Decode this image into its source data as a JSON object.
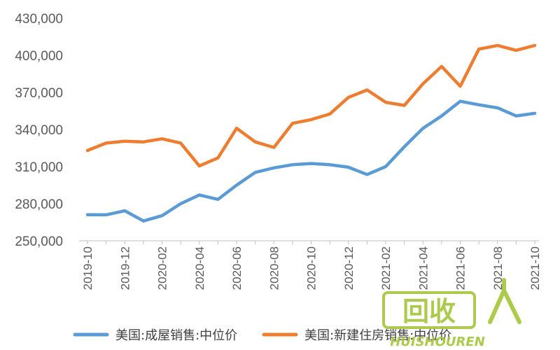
{
  "chart_data": {
    "type": "line",
    "title": "",
    "xlabel": "",
    "ylabel": "",
    "ylim": [
      250000,
      430000
    ],
    "y_ticks": [
      "250,000",
      "280,000",
      "310,000",
      "340,000",
      "370,000",
      "400,000",
      "430,000"
    ],
    "x_tick_labels": [
      "2019-10",
      "2019-12",
      "2020-02",
      "2020-04",
      "2020-06",
      "2020-08",
      "2020-10",
      "2020-12",
      "2021-02",
      "2021-04",
      "2021-06",
      "2021-08",
      "2021-10"
    ],
    "x": [
      "2019-10",
      "2019-11",
      "2019-12",
      "2020-01",
      "2020-02",
      "2020-03",
      "2020-04",
      "2020-05",
      "2020-06",
      "2020-07",
      "2020-08",
      "2020-09",
      "2020-10",
      "2020-11",
      "2020-12",
      "2021-01",
      "2021-02",
      "2021-03",
      "2021-04",
      "2021-05",
      "2021-06",
      "2021-07",
      "2021-08",
      "2021-09",
      "2021-10"
    ],
    "grid": false,
    "legend_position": "bottom",
    "series": [
      {
        "name": "美国:成屋销售:中位价",
        "color": "#5b9bd5",
        "values": [
          271100,
          271000,
          274300,
          266000,
          270300,
          280000,
          287000,
          283500,
          295000,
          305300,
          309000,
          311500,
          312500,
          311500,
          309500,
          303600,
          310000,
          326000,
          341000,
          351000,
          362800,
          360000,
          357500,
          351000,
          353100
        ]
      },
      {
        "name": "美国:新建住房销售:中位价",
        "color": "#ed7d31",
        "values": [
          323000,
          329000,
          330500,
          330000,
          332500,
          329000,
          310500,
          317000,
          341000,
          330000,
          325500,
          345000,
          348000,
          352500,
          366000,
          372000,
          362000,
          359500,
          377000,
          391000,
          375000,
          405000,
          408000,
          404000,
          408000
        ]
      }
    ]
  },
  "watermark": {
    "text": "回收",
    "subtext": "HUISHOUREN",
    "color": "#a4c639"
  }
}
